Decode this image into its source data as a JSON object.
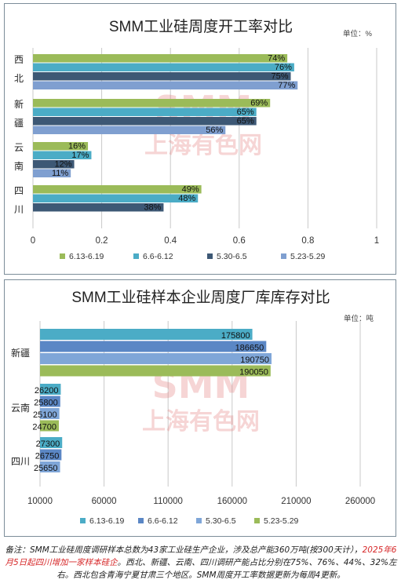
{
  "colors": {
    "green": "#9bbb59",
    "teal": "#4bacc6",
    "navy": "#3d5875",
    "lightblue": "#7f9fd0",
    "watermark": "#e26d6d"
  },
  "watermark": {
    "logo": "SMM",
    "cn": "上海有色网"
  },
  "chart_data": [
    {
      "type": "bar",
      "orientation": "horizontal",
      "title": "SMM工业硅周度开工率对比",
      "unit_label": "单位：%",
      "categories": [
        "西北",
        "新疆",
        "云南",
        "四川"
      ],
      "categories_chars": [
        [
          "西",
          "北"
        ],
        [
          "新",
          "疆"
        ],
        [
          "云",
          "南"
        ],
        [
          "四",
          "川"
        ]
      ],
      "series": [
        {
          "name": "6.13-6.19",
          "color": "#9bbb59",
          "values": [
            0.74,
            0.69,
            0.16,
            0.49
          ],
          "labels": [
            "74%",
            "69%",
            "16%",
            "49%"
          ]
        },
        {
          "name": "6.6-6.12",
          "color": "#4bacc6",
          "values": [
            0.76,
            0.65,
            0.17,
            0.48
          ],
          "labels": [
            "76%",
            "65%",
            "17%",
            "48%"
          ]
        },
        {
          "name": "5.30-6.5",
          "color": "#3d5875",
          "values": [
            0.75,
            0.65,
            0.12,
            0.38
          ],
          "labels": [
            "75%",
            "65%",
            "12%",
            "38%"
          ]
        },
        {
          "name": "5.23-5.29",
          "color": "#7f9fd0",
          "values": [
            0.77,
            0.56,
            0.11,
            null
          ],
          "labels": [
            "77%",
            "56%",
            "11%",
            ""
          ]
        }
      ],
      "xlim": [
        0,
        1
      ],
      "xticks": [
        0,
        0.2,
        0.4,
        0.6,
        0.8,
        1
      ],
      "xtick_labels": [
        "0",
        "0.2",
        "0.4",
        "0.6",
        "0.8",
        "1"
      ],
      "grid": true,
      "legend_position": "bottom"
    },
    {
      "type": "bar",
      "orientation": "horizontal",
      "title": "SMM工业硅样本企业周度厂库库存对比",
      "unit_label": "单位：吨",
      "categories": [
        "新疆",
        "云南",
        "四川"
      ],
      "series": [
        {
          "name": "6.13-6.19",
          "color": "#4bacc6",
          "values": [
            175800,
            26200,
            27300
          ],
          "labels": [
            "175800",
            "26200",
            "27300"
          ]
        },
        {
          "name": "6.6-6.12",
          "color": "#5b87c5",
          "values": [
            186650,
            25800,
            26750
          ],
          "labels": [
            "186650",
            "25800",
            "26750"
          ]
        },
        {
          "name": "5.30-6.5",
          "color": "#7fa6d8",
          "values": [
            190750,
            25100,
            25650
          ],
          "labels": [
            "190750",
            "25100",
            "25650"
          ]
        },
        {
          "name": "5.23-5.29",
          "color": "#9bbb59",
          "values": [
            190050,
            24700,
            null
          ],
          "labels": [
            "190050",
            "24700",
            ""
          ]
        }
      ],
      "xlim": [
        10000,
        260000
      ],
      "xticks": [
        10000,
        60000,
        110000,
        160000,
        210000,
        260000
      ],
      "xtick_labels": [
        "10000",
        "60000",
        "110000",
        "160000",
        "210000",
        "260000"
      ],
      "grid": true,
      "legend_position": "bottom"
    }
  ],
  "footnote": {
    "part1": "备注：SMM工业硅周度调研样本总数为43家工业硅生产企业，涉及总产能360万吨(按300天计），",
    "part2_red": "2025年6月5日起四川增加一家样本硅企",
    "part3": "。西北、新疆、云南、四川调研产能占比分别在75%、76%、44%、32%左右。西北包含青海宁夏甘肃三个地区。SMM周度开工率数据更新为每周4更新。"
  }
}
